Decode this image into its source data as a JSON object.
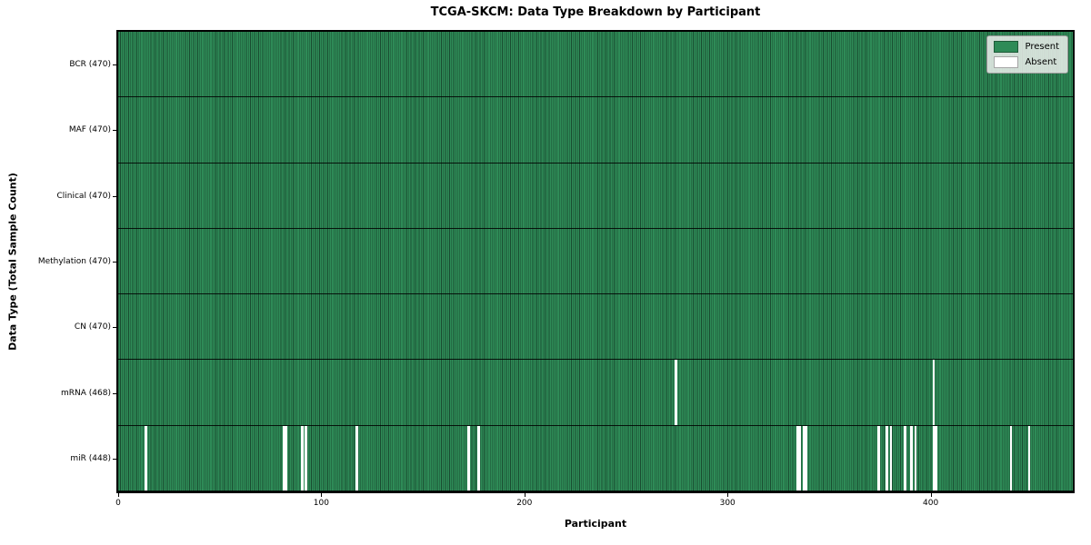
{
  "chart_data": {
    "type": "heatmap",
    "title": "TCGA-SKCM: Data Type Breakdown by Participant",
    "xlabel": "Participant",
    "ylabel": "Data Type (Total Sample Count)",
    "n_participants": 470,
    "x_ticks": [
      0,
      100,
      200,
      300,
      400
    ],
    "grid": "cell-edges-visible",
    "colors": {
      "present": "#2e8b57",
      "absent": "#ffffff",
      "cell_edge": "rgba(0,0,0,0.45)",
      "row_divider": "#000000",
      "legend_background": "#edf0ed"
    },
    "legend": {
      "position": "upper right",
      "entries": [
        {
          "label": "Present",
          "color": "#2e8b57"
        },
        {
          "label": "Absent",
          "color": "#ffffff"
        }
      ]
    },
    "rows": [
      {
        "label": "BCR (470)",
        "data_type": "BCR",
        "present_count": 470,
        "absent_participants": []
      },
      {
        "label": "MAF (470)",
        "data_type": "MAF",
        "present_count": 470,
        "absent_participants": []
      },
      {
        "label": "Clinical (470)",
        "data_type": "Clinical",
        "present_count": 470,
        "absent_participants": []
      },
      {
        "label": "Methylation (470)",
        "data_type": "Methylation",
        "present_count": 470,
        "absent_participants": []
      },
      {
        "label": "CN (470)",
        "data_type": "CN",
        "present_count": 470,
        "absent_participants": []
      },
      {
        "label": "mRNA (468)",
        "data_type": "mRNA",
        "present_count": 468,
        "absent_participants": [
          274,
          401
        ]
      },
      {
        "label": "miR (448)",
        "data_type": "miR",
        "present_count": 448,
        "absent_participants": [
          13,
          81,
          82,
          90,
          92,
          117,
          172,
          177,
          334,
          335,
          337,
          338,
          374,
          378,
          380,
          387,
          390,
          392,
          401,
          402,
          439,
          448
        ]
      }
    ]
  }
}
